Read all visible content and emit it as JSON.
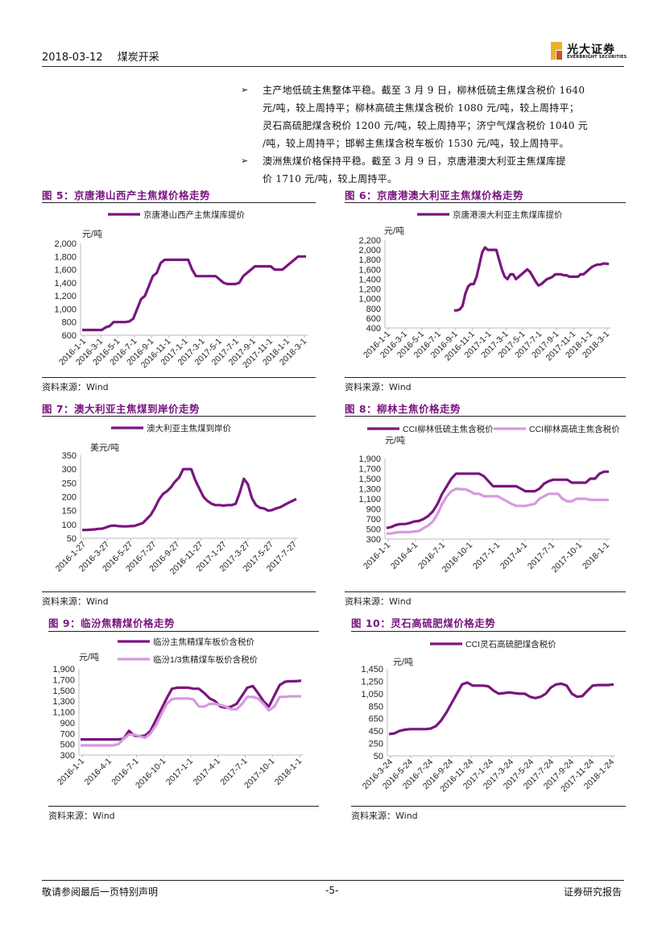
{
  "header": {
    "date": "2018-03-12",
    "sector": "煤炭开采"
  },
  "logo": {
    "cn": "光大证券",
    "en": "EVERBRIGHT SECURITIES"
  },
  "bullets": [
    {
      "lines": [
        "主产地低硫主焦整体平稳。截至 3 月 9 日，柳林低硫主焦煤含税价 1640",
        "元/吨，较上周持平；柳林高硫主焦煤含税价 1080 元/吨，较上周持平；",
        "灵石高硫肥煤含税价 1200 元/吨，较上周持平；济宁气煤含税价 1040 元",
        "/吨，较上周持平；邯郸主焦煤含税车板价 1530 元/吨，较上周持平。"
      ]
    },
    {
      "lines": [
        "澳洲焦煤价格保持平稳。截至 3 月 9 日，京唐港澳大利亚主焦煤库提",
        "价 1710 元/吨，较上周持平。"
      ]
    }
  ],
  "source": {
    "label": "资料来源：",
    "value": "Wind"
  },
  "footer": {
    "left": "敬请参阅最后一页特别声明",
    "center": "-5-",
    "right": "证券研究报告"
  },
  "colors": {
    "dark": "#7a1580",
    "light": "#d59ae0",
    "title": "#7a1580"
  },
  "chart_data": [
    {
      "id": "fig5",
      "type": "line",
      "title": "图 5：京唐港山西产主焦煤价格走势",
      "unit": "元/吨",
      "ylim": [
        600,
        2000
      ],
      "yticks": [
        "2,000",
        "1,800",
        "1,600",
        "1,400",
        "1,200",
        "1,000",
        "800",
        "600"
      ],
      "xticks": [
        "2016-1-1",
        "2016-3-1",
        "2016-5-1",
        "2016-7-1",
        "2016-9-1",
        "2016-11-1",
        "2017-1-1",
        "2017-3-1",
        "2017-5-1",
        "2017-7-1",
        "2017-9-1",
        "2017-11-1",
        "2018-1-1",
        "2018-3-1"
      ],
      "series": [
        {
          "name": "京唐港山西产主焦煤库提价",
          "style": "dark",
          "values": [
            680,
            680,
            680,
            680,
            680,
            680,
            720,
            740,
            800,
            800,
            800,
            800,
            810,
            850,
            1000,
            1150,
            1200,
            1350,
            1500,
            1550,
            1700,
            1750,
            1750,
            1750,
            1750,
            1750,
            1750,
            1750,
            1600,
            1500,
            1500,
            1500,
            1500,
            1500,
            1500,
            1450,
            1400,
            1380,
            1380,
            1380,
            1400,
            1500,
            1550,
            1600,
            1650,
            1650,
            1650,
            1650,
            1650,
            1600,
            1600,
            1600,
            1650,
            1700,
            1750,
            1800,
            1800,
            1800
          ]
        }
      ]
    },
    {
      "id": "fig6",
      "type": "line",
      "title": "图 6：京唐港澳大利亚主焦煤价格走势",
      "unit": "元/吨",
      "ylim": [
        400,
        2200
      ],
      "yticks": [
        "2,200",
        "2,000",
        "1,800",
        "1,600",
        "1,400",
        "1,200",
        "1,000",
        "800",
        "600",
        "400"
      ],
      "xticks": [
        "2016-1-1",
        "2016-3-1",
        "2016-5-1",
        "2016-7-1",
        "2016-9-1",
        "2016-11-1",
        "2017-1-1",
        "2017-3-1",
        "2017-5-1",
        "2017-7-1",
        "2017-9-1",
        "2017-11-1",
        "2018-1-1",
        "2018-3-1"
      ],
      "series": [
        {
          "name": "京唐港澳大利亚主焦煤库提价",
          "style": "dark",
          "values": [
            null,
            null,
            null,
            null,
            null,
            null,
            null,
            null,
            null,
            null,
            null,
            null,
            null,
            null,
            null,
            null,
            null,
            null,
            null,
            null,
            null,
            null,
            null,
            null,
            760,
            760,
            780,
            850,
            1100,
            1250,
            1300,
            1300,
            1450,
            1700,
            1950,
            2050,
            2000,
            2000,
            2000,
            2000,
            1800,
            1600,
            1450,
            1400,
            1500,
            1500,
            1400,
            1450,
            1500,
            1550,
            1600,
            1550,
            1450,
            1350,
            1270,
            1300,
            1350,
            1400,
            1420,
            1450,
            1500,
            1500,
            1500,
            1480,
            1480,
            1450,
            1450,
            1450,
            1450,
            1500,
            1500,
            1550,
            1600,
            1650,
            1680,
            1700,
            1700,
            1720,
            1720,
            1710
          ]
        }
      ]
    },
    {
      "id": "fig7",
      "type": "line",
      "title": "图 7：澳大利亚主焦煤到岸价走势",
      "unit": "美元/吨",
      "ylim": [
        50,
        350
      ],
      "yticks": [
        "350",
        "300",
        "250",
        "200",
        "150",
        "100",
        "50"
      ],
      "xticks": [
        "2016-1-27",
        "2016-3-27",
        "2016-5-27",
        "2016-7-27",
        "2016-9-27",
        "2016-11-27",
        "2017-1-27",
        "2017-3-27",
        "2017-5-27",
        "2017-7-27"
      ],
      "series": [
        {
          "name": "澳大利亚主焦煤到岸价",
          "style": "dark",
          "values": [
            80,
            80,
            81,
            82,
            84,
            85,
            90,
            95,
            96,
            94,
            93,
            93,
            94,
            95,
            100,
            105,
            120,
            135,
            160,
            190,
            210,
            220,
            235,
            255,
            270,
            300,
            300,
            300,
            260,
            230,
            200,
            185,
            175,
            170,
            170,
            168,
            170,
            170,
            175,
            215,
            265,
            245,
            195,
            170,
            160,
            158,
            150,
            152,
            158,
            162,
            170,
            178,
            185,
            192
          ]
        }
      ]
    },
    {
      "id": "fig8",
      "type": "line",
      "title": "图 8：柳林主焦价格走势",
      "unit": "元/吨",
      "ylim": [
        300,
        1900
      ],
      "yticks": [
        "1,900",
        "1,700",
        "1,500",
        "1,300",
        "1,100",
        "900",
        "700",
        "500",
        "300"
      ],
      "xticks": [
        "2016-1-1",
        "2016-4-1",
        "2016-7-1",
        "2016-10-1",
        "2017-1-1",
        "2017-4-1",
        "2017-7-1",
        "2017-10-1",
        "2018-1-1"
      ],
      "series": [
        {
          "name": "CCI柳林低硫主焦含税价",
          "style": "dark",
          "values": [
            520,
            540,
            580,
            600,
            600,
            620,
            650,
            660,
            700,
            760,
            850,
            1000,
            1200,
            1350,
            1500,
            1600,
            1600,
            1600,
            1600,
            1600,
            1600,
            1550,
            1450,
            1350,
            1350,
            1350,
            1350,
            1350,
            1350,
            1300,
            1250,
            1250,
            1250,
            1300,
            1400,
            1450,
            1480,
            1480,
            1480,
            1480,
            1420,
            1420,
            1420,
            1420,
            1500,
            1500,
            1600,
            1640,
            1640
          ]
        },
        {
          "name": "CCI柳林高硫主焦含税价",
          "style": "light",
          "values": [
            410,
            410,
            430,
            440,
            440,
            440,
            450,
            460,
            520,
            570,
            650,
            800,
            1000,
            1150,
            1250,
            1300,
            1290,
            1290,
            1250,
            1200,
            1200,
            1150,
            1150,
            1150,
            1150,
            1100,
            1050,
            1000,
            960,
            960,
            960,
            980,
            1000,
            1100,
            1150,
            1200,
            1200,
            1200,
            1100,
            1050,
            1050,
            1100,
            1100,
            1100,
            1080,
            1080,
            1080,
            1080,
            1080
          ]
        }
      ]
    },
    {
      "id": "fig9",
      "type": "line",
      "title": "图 9：临汾焦精煤价格走势",
      "unit": "元/吨",
      "ylim": [
        300,
        1900
      ],
      "yticks": [
        "1,900",
        "1,700",
        "1,500",
        "1,300",
        "1,100",
        "900",
        "700",
        "500",
        "300"
      ],
      "xticks": [
        "2016-1-1",
        "2016-4-1",
        "2016-7-1",
        "2016-10-1",
        "2017-1-1",
        "2017-4-1",
        "2017-7-1",
        "2017-10-1",
        "2018-1-1"
      ],
      "series": [
        {
          "name": "临汾主焦精煤车板价含税价",
          "style": "dark",
          "values": [
            590,
            590,
            590,
            590,
            590,
            590,
            590,
            590,
            600,
            750,
            660,
            650,
            660,
            750,
            950,
            1150,
            1350,
            1530,
            1550,
            1550,
            1550,
            1530,
            1530,
            1450,
            1350,
            1300,
            1200,
            1180,
            1200,
            1250,
            1400,
            1550,
            1580,
            1450,
            1300,
            1200,
            1400,
            1600,
            1660,
            1670,
            1670,
            1680
          ]
        },
        {
          "name": "临汾1/3焦精煤车板价含税价",
          "style": "light",
          "values": [
            480,
            480,
            480,
            480,
            480,
            480,
            480,
            500,
            600,
            680,
            680,
            650,
            620,
            700,
            850,
            1050,
            1250,
            1340,
            1350,
            1350,
            1350,
            1330,
            1200,
            1200,
            1250,
            1250,
            1230,
            1200,
            1150,
            1150,
            1250,
            1380,
            1380,
            1350,
            1250,
            1130,
            1200,
            1380,
            1380,
            1390,
            1390,
            1390
          ]
        }
      ]
    },
    {
      "id": "fig10",
      "type": "line",
      "title": "图 10：灵石高硫肥煤价格走势",
      "unit": "元/吨",
      "ylim": [
        50,
        1450
      ],
      "yticks": [
        "1,450",
        "1,250",
        "1,050",
        "850",
        "650",
        "450",
        "250",
        "50"
      ],
      "xticks": [
        "2016-3-24",
        "2016-5-24",
        "2016-7-24",
        "2016-9-24",
        "2016-11-24",
        "2017-1-24",
        "2017-3-24",
        "2017-5-24",
        "2017-7-24",
        "2017-9-24",
        "2017-11-24",
        "2018-1-24"
      ],
      "series": [
        {
          "name": "CCI灵石高硫肥煤含税价",
          "style": "dark",
          "values": [
            400,
            410,
            450,
            470,
            480,
            480,
            480,
            480,
            490,
            530,
            620,
            750,
            900,
            1050,
            1200,
            1230,
            1180,
            1180,
            1180,
            1170,
            1100,
            1050,
            1060,
            1070,
            1060,
            1050,
            1050,
            1000,
            980,
            1000,
            1050,
            1150,
            1200,
            1210,
            1180,
            1050,
            1000,
            1010,
            1100,
            1180,
            1190,
            1190,
            1190,
            1200
          ]
        }
      ]
    }
  ]
}
